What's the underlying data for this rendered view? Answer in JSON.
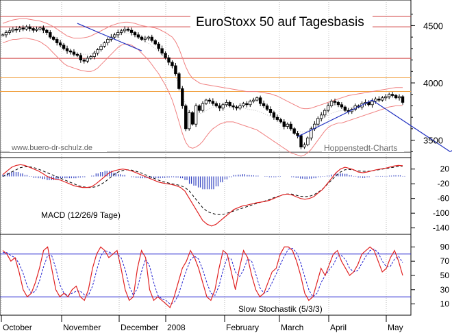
{
  "chart_data": [
    {
      "type": "candlestick",
      "title": "EuroStoxx 50 auf Tagesbasis",
      "watermark_left": "www.buero-dr-schulz.de",
      "watermark_right": "Hoppenstedt-Charts",
      "ylim": [
        3360,
        4700
      ],
      "y_ticks": [
        "4500",
        "4000",
        "3500"
      ],
      "y_tick_values": [
        4500,
        4000,
        3500
      ],
      "horizontal_lines": [
        {
          "value": 4580,
          "color": "#d04040"
        },
        {
          "value": 4490,
          "color": "#d04040"
        },
        {
          "value": 4215,
          "color": "#d04040"
        },
        {
          "value": 4045,
          "color": "#f0a040"
        },
        {
          "value": 3925,
          "color": "#f0a040"
        },
        {
          "value": 3395,
          "color": "#444444"
        }
      ],
      "close_series": [
        4420,
        4440,
        4455,
        4470,
        4465,
        4480,
        4470,
        4490,
        4475,
        4460,
        4470,
        4480,
        4460,
        4440,
        4400,
        4380,
        4350,
        4330,
        4300,
        4280,
        4270,
        4250,
        4240,
        4200,
        4190,
        4215,
        4230,
        4260,
        4290,
        4320,
        4350,
        4380,
        4400,
        4420,
        4440,
        4455,
        4470,
        4460,
        4440,
        4420,
        4400,
        4380,
        4390,
        4400,
        4370,
        4340,
        4300,
        4260,
        4220,
        4180,
        4150,
        4080,
        3950,
        3800,
        3600,
        3740,
        3640,
        3800,
        3760,
        3820,
        3850,
        3840,
        3820,
        3800,
        3780,
        3810,
        3830,
        3800,
        3790,
        3780,
        3800,
        3820,
        3810,
        3840,
        3850,
        3870,
        3820,
        3800,
        3770,
        3740,
        3700,
        3680,
        3660,
        3620,
        3640,
        3600,
        3560,
        3540,
        3440,
        3460,
        3520,
        3600,
        3640,
        3690,
        3720,
        3760,
        3800,
        3840,
        3830,
        3810,
        3790,
        3760,
        3750,
        3770,
        3800,
        3790,
        3820,
        3830,
        3810,
        3840,
        3860,
        3850,
        3870,
        3880,
        3900,
        3890,
        3870,
        3880,
        3830
      ],
      "lower_band": [
        4350,
        4360,
        4370,
        4380,
        4380,
        4385,
        4390,
        4390,
        4385,
        4380,
        4370,
        4360,
        4340,
        4320,
        4290,
        4260,
        4230,
        4200,
        4170,
        4150,
        4140,
        4130,
        4120,
        4110,
        4105,
        4100,
        4100,
        4110,
        4130,
        4160,
        4190,
        4220,
        4250,
        4280,
        4310,
        4330,
        4340,
        4340,
        4330,
        4310,
        4290,
        4260,
        4230,
        4200,
        4160,
        4120,
        4080,
        4030,
        3980,
        3920,
        3850,
        3760,
        3660,
        3560,
        3480,
        3440,
        3430,
        3440,
        3460,
        3490,
        3530,
        3570,
        3600,
        3620,
        3640,
        3650,
        3660,
        3660,
        3660,
        3650,
        3640,
        3630,
        3620,
        3610,
        3600,
        3590,
        3570,
        3550,
        3530,
        3510,
        3490,
        3470,
        3450,
        3430,
        3410,
        3390,
        3380,
        3370,
        3360,
        3370,
        3390,
        3420,
        3460,
        3500,
        3540,
        3580,
        3610,
        3630,
        3640,
        3650,
        3650,
        3660,
        3670,
        3680,
        3690,
        3700,
        3710,
        3720,
        3730,
        3740,
        3750,
        3760,
        3770,
        3780,
        3790,
        3795,
        3800,
        3800,
        3800
      ],
      "upper_band": [
        4520,
        4530,
        4540,
        4550,
        4555,
        4560,
        4560,
        4560,
        4555,
        4550,
        4545,
        4540,
        4530,
        4520,
        4505,
        4490,
        4470,
        4450,
        4430,
        4410,
        4400,
        4390,
        4390,
        4390,
        4395,
        4400,
        4410,
        4425,
        4440,
        4455,
        4470,
        4485,
        4500,
        4510,
        4520,
        4525,
        4530,
        4530,
        4525,
        4520,
        4510,
        4500,
        4495,
        4490,
        4485,
        4480,
        4470,
        4455,
        4440,
        4420,
        4400,
        4360,
        4300,
        4220,
        4140,
        4080,
        4040,
        4020,
        4000,
        3990,
        3985,
        3980,
        3975,
        3970,
        3965,
        3960,
        3955,
        3950,
        3945,
        3940,
        3935,
        3930,
        3925,
        3925,
        3925,
        3925,
        3920,
        3915,
        3910,
        3905,
        3895,
        3885,
        3870,
        3855,
        3840,
        3825,
        3810,
        3795,
        3780,
        3775,
        3775,
        3780,
        3790,
        3800,
        3810,
        3820,
        3830,
        3840,
        3850,
        3860,
        3870,
        3880,
        3890,
        3895,
        3900,
        3905,
        3910,
        3915,
        3920,
        3925,
        3930,
        3935,
        3940,
        3945,
        3950,
        3955,
        3960,
        3960,
        3960
      ],
      "trend_lines": [
        {
          "from": [
            22,
            4520
          ],
          "to": [
            41,
            4280
          ]
        },
        {
          "from": [
            87,
            3530
          ],
          "to": [
            109,
            3850
          ]
        },
        {
          "from": [
            109,
            3850
          ],
          "to": [
            132,
            3400
          ]
        },
        {
          "from": [
            132,
            3400
          ],
          "to": [
            158,
            3830
          ]
        }
      ]
    },
    {
      "type": "macd",
      "label": "MACD (12/26/9 Tage)",
      "ylim": [
        -150,
        40
      ],
      "y_ticks": [
        "20",
        "-20",
        "-60",
        "-100",
        "-140"
      ],
      "y_tick_values": [
        20,
        -20,
        -60,
        -100,
        -140
      ],
      "macd": [
        5,
        15,
        25,
        30,
        32,
        30,
        25,
        20,
        15,
        8,
        0,
        -5,
        -8,
        -10,
        -15,
        -20,
        -25,
        -28,
        -30,
        -30,
        -28,
        -20,
        -10,
        0,
        10,
        15,
        18,
        20,
        18,
        15,
        10,
        5,
        0,
        -5,
        -10,
        -15,
        -18,
        -20,
        -22,
        -25,
        -30,
        -40,
        -60,
        -80,
        -100,
        -120,
        -130,
        -135,
        -130,
        -120,
        -110,
        -100,
        -90,
        -85,
        -80,
        -78,
        -75,
        -72,
        -70,
        -68,
        -65,
        -60,
        -55,
        -50,
        -48,
        -50,
        -55,
        -60,
        -62,
        -60,
        -55,
        -45,
        -35,
        -20,
        -5,
        10,
        20,
        25,
        22,
        18,
        12,
        10,
        12,
        15,
        18,
        20,
        22,
        25,
        28,
        30,
        29
      ],
      "signal": [
        0,
        5,
        12,
        18,
        24,
        26,
        26,
        24,
        20,
        15,
        10,
        5,
        0,
        -5,
        -10,
        -15,
        -20,
        -25,
        -28,
        -30,
        -30,
        -28,
        -22,
        -15,
        -5,
        5,
        12,
        16,
        18,
        17,
        14,
        10,
        5,
        0,
        -5,
        -10,
        -14,
        -17,
        -20,
        -22,
        -25,
        -30,
        -40,
        -55,
        -70,
        -85,
        -95,
        -100,
        -103,
        -104,
        -102,
        -98,
        -94,
        -90,
        -86,
        -82,
        -78,
        -74,
        -70,
        -67,
        -63,
        -58,
        -54,
        -50,
        -48,
        -48,
        -51,
        -54,
        -55,
        -54,
        -50,
        -43,
        -34,
        -22,
        -10,
        2,
        12,
        18,
        19,
        17,
        15,
        14,
        14,
        15,
        17,
        19,
        21,
        23,
        25,
        27,
        28
      ],
      "histogram": [
        5,
        10,
        13,
        12,
        8,
        4,
        -1,
        -4,
        -5,
        -7,
        -10,
        -10,
        -8,
        -5,
        -5,
        -5,
        -5,
        -3,
        -2,
        0,
        2,
        8,
        12,
        15,
        15,
        10,
        6,
        4,
        0,
        -2,
        -4,
        -5,
        -5,
        -5,
        -5,
        -5,
        -4,
        -3,
        -2,
        -3,
        -5,
        -10,
        -20,
        -25,
        -30,
        -35,
        -35,
        -35,
        -27,
        -16,
        -8,
        -2,
        4,
        5,
        6,
        4,
        3,
        2,
        0,
        -1,
        -2,
        -2,
        -1,
        0,
        0,
        -2,
        -4,
        -6,
        -7,
        -6,
        -5,
        -2,
        -1,
        2,
        5,
        8,
        8,
        7,
        3,
        1,
        -3,
        -4,
        -2,
        0,
        1,
        1,
        1,
        2,
        3,
        3,
        1
      ]
    },
    {
      "type": "stochastic",
      "label": "Slow Stochastik (5/3/3)",
      "ylim": [
        0,
        100
      ],
      "y_ticks": [
        "90",
        "70",
        "50",
        "30",
        "10"
      ],
      "y_tick_values": [
        90,
        70,
        50,
        30,
        10
      ],
      "reference_lines": [
        80,
        20
      ],
      "k": [
        85,
        80,
        70,
        75,
        55,
        30,
        20,
        25,
        40,
        60,
        85,
        90,
        60,
        30,
        20,
        25,
        20,
        30,
        35,
        20,
        15,
        30,
        60,
        80,
        90,
        85,
        75,
        80,
        85,
        60,
        30,
        15,
        20,
        60,
        85,
        75,
        30,
        15,
        20,
        15,
        10,
        5,
        20,
        40,
        60,
        70,
        85,
        75,
        60,
        40,
        20,
        15,
        30,
        60,
        85,
        80,
        55,
        30,
        60,
        85,
        75,
        50,
        30,
        20,
        25,
        40,
        55,
        60,
        80,
        90,
        90,
        85,
        70,
        50,
        25,
        15,
        20,
        40,
        60,
        50,
        65,
        80,
        85,
        70,
        60,
        50,
        55,
        65,
        80,
        85,
        90,
        85,
        70,
        55,
        60,
        75,
        85,
        70,
        50
      ],
      "d": [
        82,
        82,
        78,
        75,
        67,
        53,
        35,
        25,
        28,
        42,
        62,
        78,
        78,
        60,
        37,
        25,
        22,
        25,
        28,
        28,
        23,
        22,
        35,
        57,
        77,
        85,
        83,
        80,
        80,
        75,
        58,
        35,
        22,
        32,
        55,
        73,
        63,
        40,
        22,
        17,
        15,
        10,
        12,
        22,
        40,
        57,
        72,
        77,
        73,
        58,
        40,
        25,
        22,
        35,
        58,
        75,
        73,
        55,
        48,
        58,
        73,
        70,
        52,
        33,
        25,
        28,
        40,
        52,
        65,
        77,
        87,
        88,
        82,
        68,
        48,
        30,
        20,
        25,
        40,
        50,
        58,
        65,
        77,
        78,
        72,
        60,
        55,
        57,
        67,
        77,
        85,
        87,
        82,
        70,
        62,
        63,
        73,
        77,
        68
      ]
    }
  ],
  "x_axis": {
    "months": [
      "October",
      "November",
      "December",
      "2008",
      "February",
      "March",
      "April",
      "May"
    ]
  },
  "colors": {
    "price": "#000000",
    "band": "#f08080",
    "trend": "#2030c0",
    "macd_line": "#e02020",
    "macd_signal": "#000000",
    "macd_hist": "#3040c0",
    "stoch_k": "#e02020",
    "stoch_d": "#2020d0",
    "ref_line": "#2020d0"
  }
}
